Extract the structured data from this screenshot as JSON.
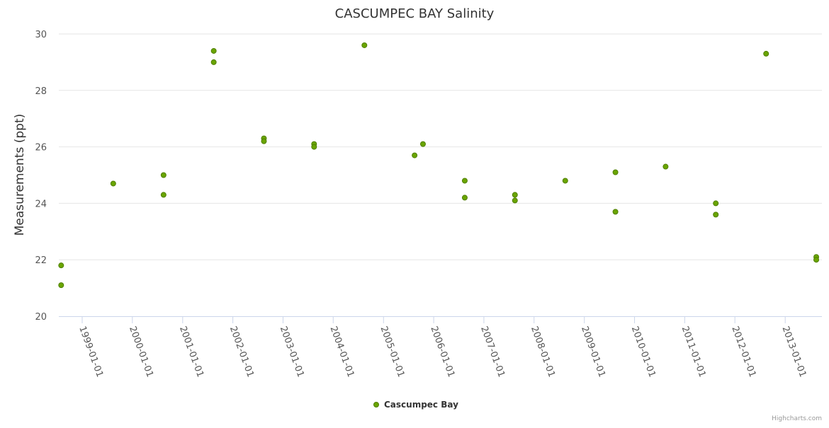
{
  "chart_data": {
    "type": "scatter",
    "title": "CASCUMPEC BAY Salinity",
    "ylabel": "Measurements (ppt)",
    "xlabel": "",
    "ylim": [
      20,
      30
    ],
    "yticks": [
      "20",
      "22",
      "24",
      "26",
      "28",
      "30"
    ],
    "xlim": [
      "1998-07-15",
      "2013-09-25"
    ],
    "xticks": [
      "1999-01-01",
      "2000-01-01",
      "2001-01-01",
      "2002-01-01",
      "2003-01-01",
      "2004-01-01",
      "2005-01-01",
      "2006-01-01",
      "2007-01-01",
      "2008-01-01",
      "2009-01-01",
      "2010-01-01",
      "2011-01-01",
      "2012-01-01",
      "2013-01-01"
    ],
    "grid": true,
    "legend_position": "bottom-center",
    "series": [
      {
        "name": "Cascumpec Bay",
        "color": "#7cb5ec",
        "marker_fill": "#6aa500",
        "marker_stroke": "#4f7f00",
        "points": [
          {
            "x": "1998-08-01",
            "y": 21.8
          },
          {
            "x": "1998-08-01",
            "y": 21.1
          },
          {
            "x": "1999-08-15",
            "y": 24.7
          },
          {
            "x": "2000-08-15",
            "y": 25.0
          },
          {
            "x": "2000-08-15",
            "y": 24.3
          },
          {
            "x": "2001-08-15",
            "y": 29.4
          },
          {
            "x": "2001-08-15",
            "y": 29.0
          },
          {
            "x": "2002-08-15",
            "y": 26.3
          },
          {
            "x": "2002-08-15",
            "y": 26.2
          },
          {
            "x": "2003-08-15",
            "y": 26.1
          },
          {
            "x": "2003-08-15",
            "y": 26.0
          },
          {
            "x": "2004-08-15",
            "y": 29.6
          },
          {
            "x": "2005-08-15",
            "y": 25.7
          },
          {
            "x": "2005-10-15",
            "y": 26.1
          },
          {
            "x": "2006-08-15",
            "y": 24.8
          },
          {
            "x": "2006-08-15",
            "y": 24.2
          },
          {
            "x": "2007-08-15",
            "y": 24.3
          },
          {
            "x": "2007-08-15",
            "y": 24.1
          },
          {
            "x": "2008-08-15",
            "y": 24.8
          },
          {
            "x": "2009-08-15",
            "y": 25.1
          },
          {
            "x": "2009-08-15",
            "y": 23.7
          },
          {
            "x": "2010-08-15",
            "y": 25.3
          },
          {
            "x": "2011-08-15",
            "y": 24.0
          },
          {
            "x": "2011-08-15",
            "y": 23.6
          },
          {
            "x": "2012-08-15",
            "y": 29.3
          },
          {
            "x": "2013-08-15",
            "y": 22.1
          },
          {
            "x": "2013-08-15",
            "y": 22.0
          }
        ]
      }
    ]
  },
  "credit": "Highcharts.com",
  "colors": {
    "grid": "#e6e6e6",
    "axis": "#ccd6eb",
    "text": "#333333"
  }
}
